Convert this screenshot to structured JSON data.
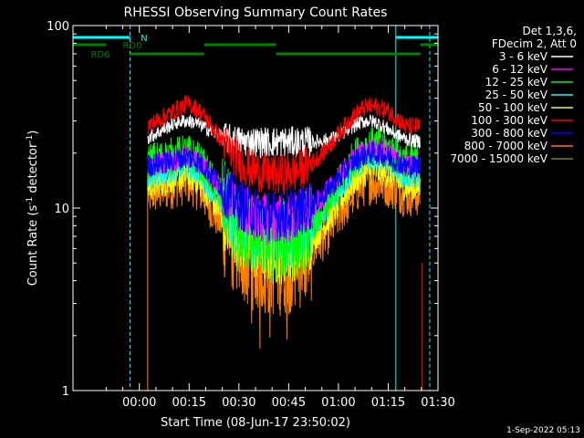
{
  "chart_data": {
    "type": "line",
    "title": "RHESSI Observing Summary Count Rates",
    "xlabel": "Start Time (08-Jun-17 23:50:02)",
    "ylabel_main": "Count Rate (s",
    "ylabel_sup1": "-1",
    "ylabel_mid": " detector",
    "ylabel_sup2": "-1",
    "ylabel_end": ")",
    "y_scale": "log",
    "ylim": [
      1,
      100
    ],
    "xlim_minutes": [
      -10,
      100
    ],
    "x_ticks": [
      {
        "t": 10,
        "label": "00:00"
      },
      {
        "t": 25,
        "label": "00:15"
      },
      {
        "t": 40,
        "label": "00:30"
      },
      {
        "t": 55,
        "label": "00:45"
      },
      {
        "t": 70,
        "label": "01:00"
      },
      {
        "t": 85,
        "label": "01:15"
      },
      {
        "t": 100,
        "label": "01:30"
      }
    ],
    "y_ticks": [
      {
        "v": 1,
        "label": "1"
      },
      {
        "v": 10,
        "label": "10"
      },
      {
        "v": 100,
        "label": "100"
      }
    ],
    "info_lines": [
      "Det 1,3,6,",
      "FDecim 2, Att 0"
    ],
    "legend_position": "top-right",
    "series": [
      {
        "name": "3 - 6 keV",
        "color": "#ffffff",
        "shape": "a",
        "base": 25,
        "peak1": 30,
        "peak2": 30,
        "mid": 23,
        "noise": 0.03
      },
      {
        "name": "6 - 12 keV",
        "color": "#ff00ff",
        "shape": "b",
        "base": 17,
        "peak1": 19,
        "peak2": 21,
        "mid": 8.5,
        "noise": 0.05
      },
      {
        "name": "12 - 25 keV",
        "color": "#00ff00",
        "shape": "b",
        "base": 18,
        "peak1": 20,
        "peak2": 22,
        "mid": 6.5,
        "noise": 0.08
      },
      {
        "name": "25 - 50 keV",
        "color": "#00ffff",
        "shape": "b",
        "base": 15,
        "peak1": 17,
        "peak2": 19,
        "mid": 6.5,
        "noise": 0.06
      },
      {
        "name": "50 - 100 keV",
        "color": "#ffff00",
        "shape": "b",
        "base": 13,
        "peak1": 15,
        "peak2": 16,
        "mid": 5.5,
        "noise": 0.06
      },
      {
        "name": "100 - 300 keV",
        "color": "#ff0000",
        "shape": "b",
        "base": 28,
        "peak1": 37,
        "peak2": 36,
        "mid": 15,
        "noise": 0.04
      },
      {
        "name": "300 - 800 keV",
        "color": "#0000ff",
        "shape": "b",
        "base": 17,
        "peak1": 19,
        "peak2": 20,
        "mid": 9,
        "noise": 0.05
      },
      {
        "name": "800 - 7000 keV",
        "color": "#ff8000",
        "shape": "b",
        "base": 12,
        "peak1": 14,
        "peak2": 14,
        "mid": 4.8,
        "noise": 0.1
      },
      {
        "name": "7000 - 15000 keV",
        "color": "#808000",
        "shape": "none"
      }
    ],
    "data_start_minute": 12.5,
    "data_end_minute": 94.7,
    "flag_bars": [
      {
        "label": "N",
        "color": "#00ffff",
        "segments": [
          [
            -10,
            7.2
          ],
          [
            87.3,
            100
          ]
        ],
        "level": 1
      },
      {
        "label": "RD0",
        "color": "#008000",
        "segments": [
          [
            -10,
            0
          ],
          [
            29.5,
            51.2
          ],
          [
            94.7,
            100
          ]
        ],
        "level": 2
      },
      {
        "label": "RD6",
        "color": "#008000",
        "segments": [
          [
            7.2,
            29.5
          ],
          [
            51.2,
            94.7
          ]
        ],
        "level": 3
      }
    ],
    "night_lines_solid": [
      -10,
      87.3
    ],
    "night_lines_dashed": [
      7.2,
      97.5
    ],
    "drop_line_minute": 95.2,
    "footer": "1-Sep-2022 05:13"
  }
}
